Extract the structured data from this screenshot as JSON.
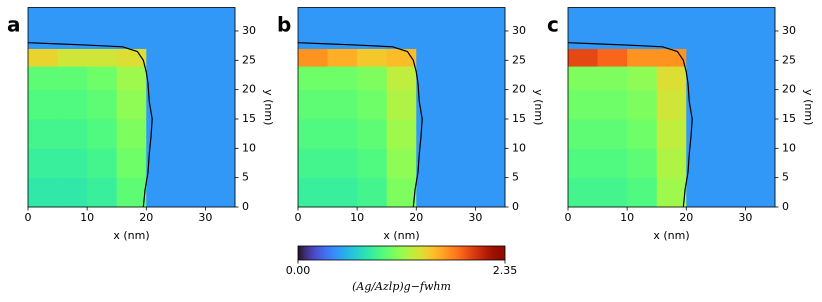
{
  "chart_data": [
    {
      "type": "heatmap",
      "panel_label": "a",
      "xlabel": "x (nm)",
      "ylabel": "y (nm)",
      "xlim": [
        0,
        35
      ],
      "ylim": [
        0,
        34
      ],
      "xticks": [
        0,
        10,
        20,
        30
      ],
      "yticks": [
        0,
        5,
        10,
        15,
        20,
        25,
        30
      ],
      "x_edges": [
        0,
        5,
        10,
        15,
        20,
        25,
        30,
        35
      ],
      "y_edges": [
        0,
        5,
        10,
        15,
        20,
        24,
        27,
        34
      ],
      "values": [
        [
          0.8,
          0.8,
          0.85,
          1.0,
          0.45,
          0.45,
          0.45
        ],
        [
          0.85,
          0.85,
          0.9,
          1.05,
          0.45,
          0.45,
          0.45
        ],
        [
          0.9,
          0.9,
          0.95,
          1.1,
          0.45,
          0.45,
          0.45
        ],
        [
          0.95,
          0.95,
          1.0,
          1.15,
          0.45,
          0.45,
          0.45
        ],
        [
          1.0,
          1.0,
          1.05,
          1.2,
          0.45,
          0.45,
          0.45
        ],
        [
          1.45,
          1.35,
          1.35,
          1.4,
          0.45,
          0.45,
          0.45
        ],
        [
          0.45,
          0.45,
          0.45,
          0.45,
          0.45,
          0.45,
          0.45
        ]
      ],
      "boundary_x": [
        19.5,
        19.8,
        20.3,
        20.5,
        20.8,
        21,
        20.5,
        20.3,
        20,
        19.5,
        18.5,
        16,
        10,
        5,
        0
      ],
      "boundary_y": [
        0,
        3,
        6,
        9,
        12,
        15,
        18,
        21,
        23,
        25,
        26.5,
        27.3,
        27.6,
        27.8,
        28
      ]
    },
    {
      "type": "heatmap",
      "panel_label": "b",
      "xlabel": "x (nm)",
      "ylabel": "y (nm)",
      "xlim": [
        0,
        35
      ],
      "ylim": [
        0,
        34
      ],
      "xticks": [
        0,
        10,
        20,
        30
      ],
      "yticks": [
        0,
        5,
        10,
        15,
        20,
        25,
        30
      ],
      "x_edges": [
        0,
        5,
        10,
        15,
        20,
        25,
        30,
        35
      ],
      "y_edges": [
        0,
        5,
        10,
        15,
        20,
        24,
        27,
        34
      ],
      "values": [
        [
          0.85,
          0.85,
          0.9,
          1.1,
          0.45,
          0.45,
          0.45
        ],
        [
          0.9,
          0.9,
          0.95,
          1.15,
          0.45,
          0.45,
          0.45
        ],
        [
          0.95,
          0.95,
          1.0,
          1.2,
          0.45,
          0.45,
          0.45
        ],
        [
          1.0,
          1.0,
          1.05,
          1.25,
          0.45,
          0.45,
          0.45
        ],
        [
          1.05,
          1.05,
          1.1,
          1.3,
          0.45,
          0.45,
          0.45
        ],
        [
          1.7,
          1.6,
          1.5,
          1.55,
          0.45,
          0.45,
          0.45
        ],
        [
          0.45,
          0.45,
          0.45,
          0.45,
          0.45,
          0.45,
          0.45
        ]
      ],
      "boundary_x": [
        19.5,
        19.8,
        20.3,
        20.5,
        20.8,
        21,
        20.5,
        20.3,
        20,
        19.5,
        18.5,
        16,
        10,
        5,
        0
      ],
      "boundary_y": [
        0,
        3,
        6,
        9,
        12,
        15,
        18,
        21,
        23,
        25,
        26.5,
        27.3,
        27.6,
        27.8,
        28
      ]
    },
    {
      "type": "heatmap",
      "panel_label": "c",
      "xlabel": "x (nm)",
      "ylabel": "y (nm)",
      "xlim": [
        0,
        35
      ],
      "ylim": [
        0,
        34
      ],
      "xticks": [
        0,
        10,
        20,
        30
      ],
      "yticks": [
        0,
        5,
        10,
        15,
        20,
        25,
        30
      ],
      "x_edges": [
        0,
        5,
        10,
        15,
        20,
        25,
        30,
        35
      ],
      "y_edges": [
        0,
        5,
        10,
        15,
        20,
        24,
        27,
        34
      ],
      "values": [
        [
          0.9,
          0.9,
          0.95,
          1.2,
          0.45,
          0.45,
          0.45
        ],
        [
          0.95,
          0.95,
          1.0,
          1.25,
          0.45,
          0.45,
          0.45
        ],
        [
          1.0,
          1.0,
          1.05,
          1.3,
          0.45,
          0.45,
          0.45
        ],
        [
          1.05,
          1.05,
          1.1,
          1.35,
          0.45,
          0.45,
          0.45
        ],
        [
          1.1,
          1.1,
          1.15,
          1.4,
          0.45,
          0.45,
          0.45
        ],
        [
          1.95,
          1.85,
          1.7,
          1.7,
          0.45,
          0.45,
          0.45
        ],
        [
          0.45,
          0.45,
          0.45,
          0.45,
          0.45,
          0.45,
          0.45
        ]
      ],
      "boundary_x": [
        19.5,
        19.8,
        20.3,
        20.5,
        20.8,
        21,
        20.5,
        20.3,
        20,
        19.5,
        18.5,
        16,
        10,
        5,
        0
      ],
      "boundary_y": [
        0,
        3,
        6,
        9,
        12,
        15,
        18,
        21,
        23,
        25,
        26.5,
        27.3,
        27.6,
        27.8,
        28
      ]
    }
  ],
  "colorbar": {
    "colormap": "turbo",
    "clim": [
      0,
      2.35
    ],
    "ticks": [
      {
        "value": 0,
        "label": "0.00"
      },
      {
        "value": 2.35,
        "label": "2.35"
      }
    ],
    "label": "(Ag/Azlp)g−fwhm"
  }
}
